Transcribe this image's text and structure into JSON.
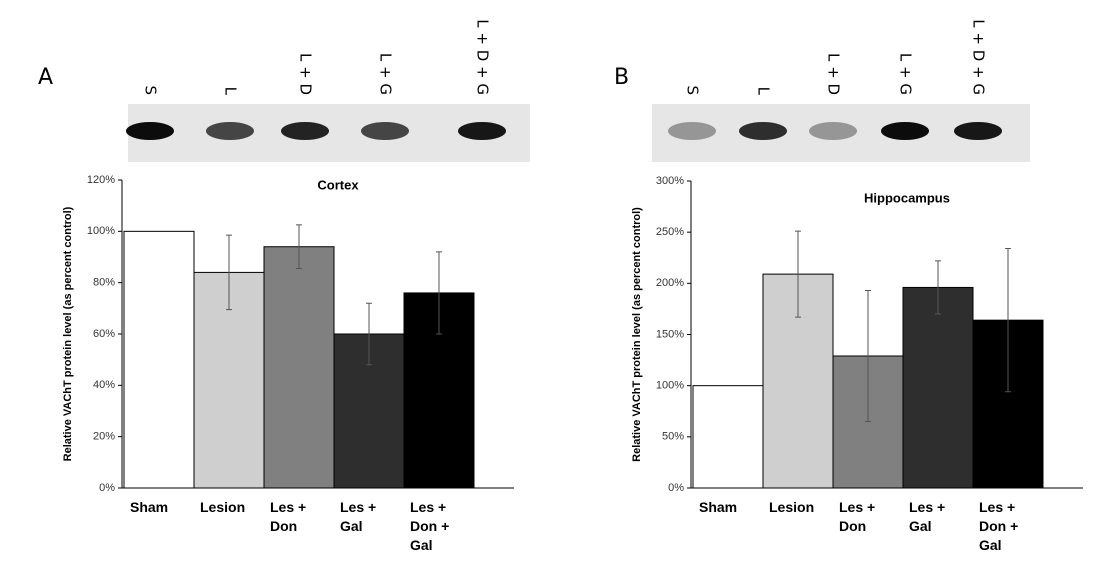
{
  "chart_data": [
    {
      "type": "bar",
      "panel_label": "A",
      "title": "Cortex",
      "y_label": "Relative VAChT protein level (as percent control)",
      "blot_lanes": [
        "S",
        "L",
        "L + D",
        "L + G",
        "L + D + G"
      ],
      "categories": [
        "Sham",
        "Lesion",
        "Les + Don",
        "Les + Gal",
        "Les + Don + Gal"
      ],
      "values": [
        100,
        84,
        94,
        60,
        76
      ],
      "errors": [
        null,
        14.5,
        8.5,
        12,
        16
      ],
      "colors": [
        "#ffffff",
        "#cfcfcf",
        "#808080",
        "#2e2e2e",
        "#000000"
      ],
      "ylim": [
        0,
        120
      ],
      "yticks": [
        {
          "value": 0,
          "label": "0%"
        },
        {
          "value": 20,
          "label": "20%"
        },
        {
          "value": 40,
          "label": "40%"
        },
        {
          "value": 60,
          "label": "60%"
        },
        {
          "value": 80,
          "label": "80%"
        },
        {
          "value": 100,
          "label": "100%"
        },
        {
          "value": 120,
          "label": "120%"
        }
      ]
    },
    {
      "type": "bar",
      "panel_label": "B",
      "title": "Hippocampus",
      "y_label": "Relative VAChT protein level (as percent control)",
      "blot_lanes": [
        "S",
        "L",
        "L + D",
        "L + G",
        "L + D + G"
      ],
      "categories": [
        "Sham",
        "Lesion",
        "Les + Don",
        "Les + Gal",
        "Les + Don + Gal"
      ],
      "values": [
        100,
        209,
        129,
        196,
        164
      ],
      "errors": [
        null,
        42,
        64,
        26,
        70
      ],
      "colors": [
        "#ffffff",
        "#cfcfcf",
        "#808080",
        "#2e2e2e",
        "#000000"
      ],
      "ylim": [
        0,
        300
      ],
      "yticks": [
        {
          "value": 0,
          "label": "0%"
        },
        {
          "value": 50,
          "label": "50%"
        },
        {
          "value": 100,
          "label": "100%"
        },
        {
          "value": 150,
          "label": "150%"
        },
        {
          "value": 200,
          "label": "200%"
        },
        {
          "value": 250,
          "label": "250%"
        },
        {
          "value": 300,
          "label": "300%"
        }
      ]
    }
  ]
}
